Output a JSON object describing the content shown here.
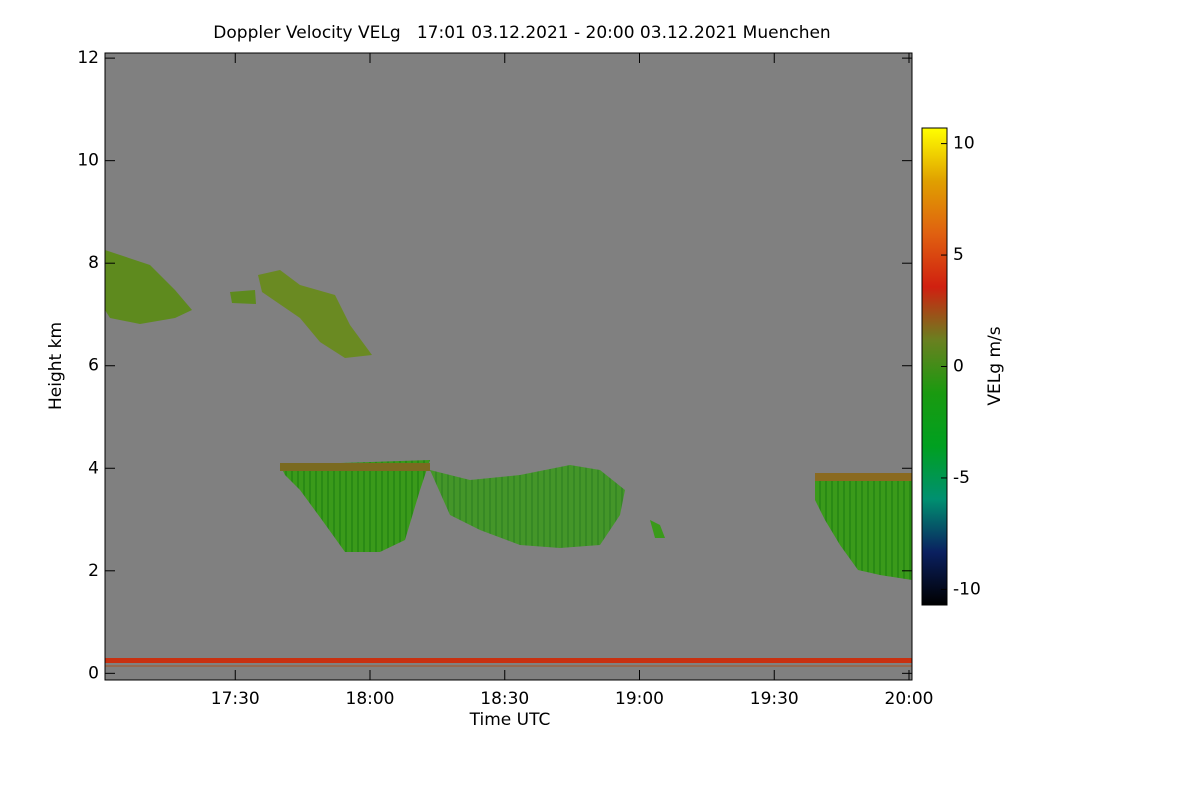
{
  "chart_data": {
    "type": "heatmap",
    "title": "Doppler Velocity VELg   17:01 03.12.2021 - 20:00 03.12.2021 Muenchen",
    "x_label": "Time UTC",
    "y_label": "Height km",
    "xlim": [
      "17:01",
      "20:00"
    ],
    "xticks": [
      "17:30",
      "18:00",
      "18:30",
      "19:00",
      "19:30",
      "20:00"
    ],
    "ylim": [
      -0.13,
      12.1
    ],
    "yticks": [
      0,
      2,
      4,
      6,
      8,
      10,
      12
    ],
    "colorbar": {
      "label": "VELg m/s",
      "zlim": [
        -10.7,
        10.7
      ],
      "ticks": [
        -10,
        -5,
        0,
        5,
        10
      ],
      "colors": [
        "#000000",
        "#0a2060",
        "#009070",
        "#00a020",
        "#1a9a10",
        "#6a8020",
        "#d02010",
        "#e06010",
        "#e0a000",
        "#ffff00"
      ]
    },
    "background": "#808080"
  }
}
